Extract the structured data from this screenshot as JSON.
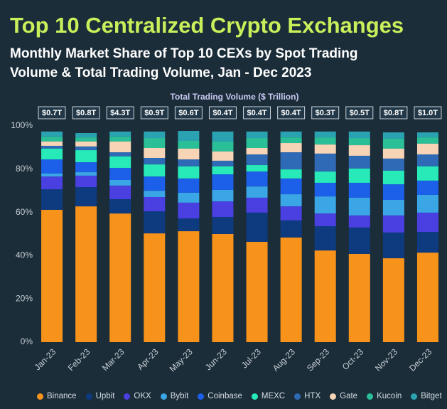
{
  "chart_data": {
    "type": "stacked_bar",
    "title": "Top 10 Centralized Crypto Exchanges",
    "subtitle": "Monthly Market Share of Top 10 CEXs by Spot Trading Volume & Total Trading Volume, Jan - Dec 2023",
    "categories": [
      "Jan-23",
      "Feb-23",
      "Mar-23",
      "Apr-23",
      "May-23",
      "Jun-23",
      "Jul-23",
      "Aug-23",
      "Sep-23",
      "Oct-23",
      "Nov-23",
      "Dec-23"
    ],
    "series": [
      {
        "name": "Binance",
        "color": "#f7931a",
        "values": [
          61.2,
          62.8,
          59.5,
          50.3,
          51.3,
          50.0,
          46.4,
          48.4,
          42.4,
          40.8,
          38.8,
          41.4
        ]
      },
      {
        "name": "Upbit",
        "color": "#0e3a80",
        "values": [
          9.5,
          8.9,
          6.6,
          10.2,
          5.9,
          7.9,
          13.5,
          7.9,
          11.2,
          12.2,
          11.9,
          9.6
        ]
      },
      {
        "name": "OKX",
        "color": "#4a3fe0",
        "values": [
          5.9,
          5.3,
          6.3,
          6.6,
          7.3,
          7.2,
          6.9,
          6.5,
          5.9,
          5.6,
          7.9,
          8.9
        ]
      },
      {
        "name": "Bybit",
        "color": "#3aa6e6",
        "values": [
          1.4,
          1.6,
          2.6,
          2.9,
          4.6,
          5.3,
          5.2,
          5.6,
          7.9,
          8.2,
          7.2,
          8.2
        ]
      },
      {
        "name": "Coinbase",
        "color": "#1c5fe8",
        "values": [
          6.5,
          4.6,
          5.6,
          6.6,
          6.6,
          7.2,
          6.9,
          7.3,
          6.3,
          6.9,
          7.2,
          6.6
        ]
      },
      {
        "name": "MEXC",
        "color": "#27eab8",
        "values": [
          5.0,
          5.6,
          5.3,
          5.6,
          5.6,
          3.7,
          3.0,
          4.2,
          5.2,
          6.6,
          6.3,
          6.6
        ]
      },
      {
        "name": "HTX",
        "color": "#2f6ab6",
        "values": [
          1.3,
          1.7,
          1.9,
          3.0,
          3.2,
          2.6,
          4.9,
          7.9,
          8.3,
          5.9,
          5.6,
          5.5
        ]
      },
      {
        "name": "Gate",
        "color": "#f7d4b6",
        "values": [
          2.0,
          2.3,
          5.0,
          4.6,
          5.0,
          4.3,
          3.0,
          4.3,
          4.2,
          4.9,
          4.6,
          5.0
        ]
      },
      {
        "name": "Kucoin",
        "color": "#2bbf98",
        "values": [
          2.2,
          1.9,
          2.2,
          4.6,
          3.6,
          4.6,
          4.6,
          2.6,
          3.3,
          3.3,
          4.6,
          2.9
        ]
      },
      {
        "name": "Bitget",
        "color": "#2aa2b2",
        "values": [
          2.4,
          2.0,
          2.4,
          3.0,
          4.6,
          4.6,
          3.0,
          2.7,
          2.7,
          3.0,
          2.9,
          2.3
        ]
      }
    ],
    "ylim": [
      0,
      100
    ],
    "yticks": [
      {
        "value": 0,
        "label": "0%"
      },
      {
        "value": 20,
        "label": "20%"
      },
      {
        "value": 40,
        "label": "40%"
      },
      {
        "value": 60,
        "label": "60%"
      },
      {
        "value": 80,
        "label": "80%"
      },
      {
        "value": 100,
        "label": "100%"
      }
    ],
    "grid": false,
    "legend": "bottom",
    "total_volume": {
      "title": "Total Trading Volume ($ Trillion)",
      "values": [
        0.7,
        0.8,
        4.3,
        0.9,
        0.6,
        0.4,
        0.4,
        0.4,
        0.3,
        0.5,
        0.8,
        1.0
      ],
      "value_labels": [
        "$0.7T",
        "$0.8T",
        "$4.3T",
        "$0.9T",
        "$0.6T",
        "$0.4T",
        "$0.4T",
        "$0.4T",
        "$0.3T",
        "$0.5T",
        "$0.8T",
        "$1.0T"
      ]
    }
  }
}
